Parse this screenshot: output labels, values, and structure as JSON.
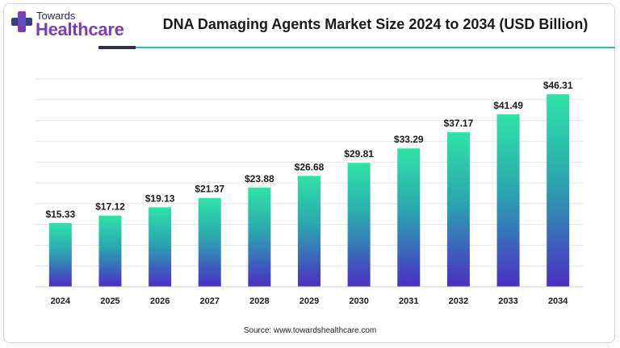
{
  "header": {
    "logo_top": "Towards",
    "logo_main": "Healthcare",
    "title": "DNA Damaging Agents Market Size 2024 to 2034 (USD Billion)"
  },
  "footer": {
    "source": "Source: www.towardshealthcare.com"
  },
  "colors": {
    "bar_top": "#2fe3a6",
    "bar_mid": "#2aa6b0",
    "bar_bottom": "#4b2ec4",
    "grid": "#e6e6e6",
    "accent_teal": "#2bbfa6",
    "accent_dark": "#2d2f5a",
    "logo_purple": "#7a3fb5"
  },
  "chart_data": {
    "type": "bar",
    "title": "DNA Damaging Agents Market Size 2024 to 2034 (USD Billion)",
    "categories": [
      "2024",
      "2025",
      "2026",
      "2027",
      "2028",
      "2029",
      "2030",
      "2031",
      "2032",
      "2033",
      "2034"
    ],
    "values": [
      15.33,
      17.12,
      19.13,
      21.37,
      23.88,
      26.68,
      29.81,
      33.29,
      37.17,
      41.49,
      46.31
    ],
    "data_labels": [
      "$15.33",
      "$17.12",
      "$19.13",
      "$21.37",
      "$23.88",
      "$26.68",
      "$29.81",
      "$33.29",
      "$37.17",
      "$41.49",
      "$46.31"
    ],
    "xlabel": "",
    "ylabel": "",
    "ylim": [
      0,
      50
    ],
    "grid": true,
    "legend": "none"
  }
}
